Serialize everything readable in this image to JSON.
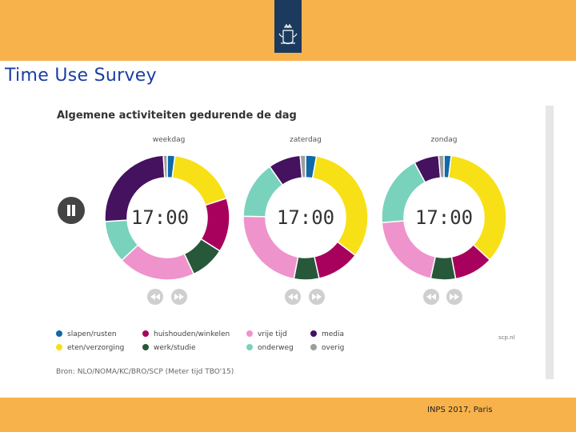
{
  "slide": {
    "title": "Time Use Survey",
    "footer": "INPS 2017, Paris"
  },
  "colors": {
    "bar": "#f8b24b",
    "logo": "#1b3a5e",
    "title": "#1a3fa3"
  },
  "icons": {
    "logo": "crown-lion-emblem-icon",
    "pause": "pause-icon",
    "previous": "rewind-icon",
    "next": "fast-forward-icon"
  },
  "chart_data": {
    "type": "pie",
    "title": "Algemene activiteiten gedurende de dag",
    "time": "17:00",
    "categories": [
      "slapen/rusten",
      "huishouden/winkelen",
      "vrije tijd",
      "media",
      "eten/verzorging",
      "werk/studie",
      "onderweg",
      "overig"
    ],
    "colors": [
      "#0e6aa8",
      "#a8005d",
      "#ef93cc",
      "#44125f",
      "#f7e016",
      "#27583a",
      "#78d2bc",
      "#9d9d9d"
    ],
    "order": [
      "slapen/rusten",
      "eten/verzorging",
      "huishouden/winkelen",
      "werk/studie",
      "vrije tijd",
      "onderweg",
      "media",
      "overig"
    ],
    "series": [
      {
        "name": "weekdag",
        "values": [
          2,
          14,
          20,
          25,
          18,
          9,
          11,
          1
        ]
      },
      {
        "name": "zaterdag",
        "values": [
          3,
          12,
          24,
          9,
          35,
          7,
          16,
          1.5
        ]
      },
      {
        "name": "zondag",
        "values": [
          2,
          11,
          22,
          7,
          38,
          7,
          20,
          1.5
        ]
      }
    ],
    "legend": [
      {
        "label": "slapen/rusten",
        "color": "#0e6aa8"
      },
      {
        "label": "huishouden/winkelen",
        "color": "#a8005d"
      },
      {
        "label": "vrije tijd",
        "color": "#ef93cc"
      },
      {
        "label": "media",
        "color": "#44125f"
      },
      {
        "label": "eten/verzorging",
        "color": "#f7e016"
      },
      {
        "label": "werk/studie",
        "color": "#27583a"
      },
      {
        "label": "onderweg",
        "color": "#78d2bc"
      },
      {
        "label": "overig",
        "color": "#9d9d9d"
      }
    ],
    "source_link": "scp.nl",
    "source": "Bron: NLO/NOMA/KC/BRO/SCP (Meter tijd TBO'15)"
  }
}
